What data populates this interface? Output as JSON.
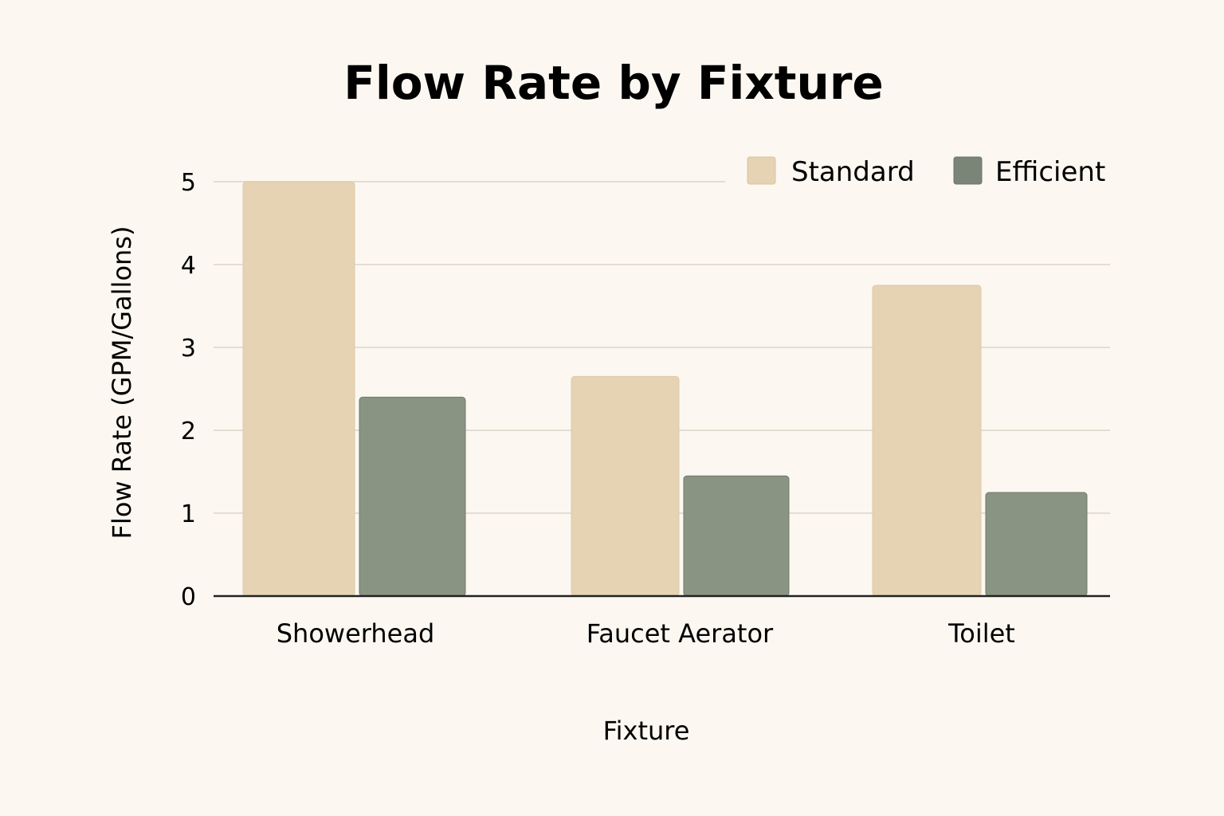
{
  "chart_data": {
    "type": "bar",
    "title": "Flow Rate by Fixture",
    "xlabel": "Fixture",
    "ylabel": "Flow Rate (GPM/Gallons)",
    "categories": [
      "Showerhead",
      "Faucet Aerator",
      "Toilet"
    ],
    "series": [
      {
        "name": "Standard",
        "values": [
          5.0,
          2.65,
          3.75
        ],
        "color": "#e6d3b3"
      },
      {
        "name": "Efficient",
        "values": [
          2.4,
          1.45,
          1.25
        ],
        "color": "#8a9482"
      }
    ],
    "ylim": [
      0,
      5
    ],
    "yticks": [
      "0",
      "1",
      "2",
      "3",
      "4",
      "5"
    ],
    "grid": true,
    "legend": "top-right"
  }
}
